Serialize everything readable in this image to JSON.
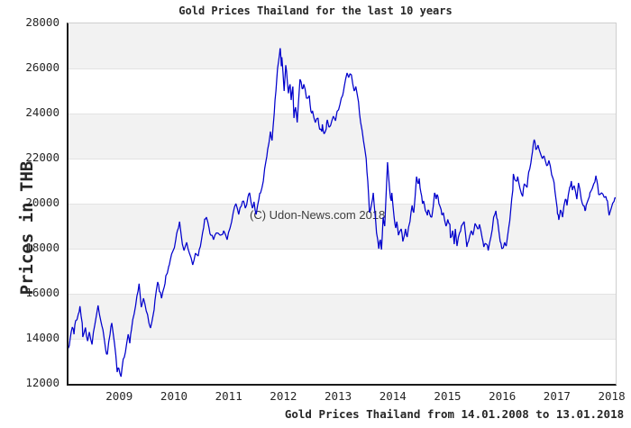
{
  "chart_data": {
    "type": "line",
    "title": "Gold Prices Thailand for the last 10 years",
    "ylabel": "Prices in THB",
    "xlabel": "",
    "caption": "Gold Prices Thailand from 14.01.2008 to 13.01.2018",
    "watermark": "(C) Udon-News.com 2018",
    "date_range": {
      "from": "14.01.2008",
      "to": "13.01.2018"
    },
    "xlim": [
      2008.04,
      2018.04
    ],
    "ylim": [
      12000,
      28000
    ],
    "x_ticks": [
      "2009",
      "2010",
      "2011",
      "2012",
      "2013",
      "2014",
      "2015",
      "2016",
      "2017",
      "2018"
    ],
    "y_ticks": [
      "12000",
      "14000",
      "16000",
      "18000",
      "20000",
      "22000",
      "24000",
      "26000",
      "28000"
    ],
    "grid": "horizontal-bands",
    "legend": "none",
    "band_colors": {
      "shaded": "#f2f2f2",
      "plain": "#ffffff"
    },
    "line_color": "#0000cc",
    "series": [
      {
        "name": "Gold price Thailand (THB)",
        "points": [
          [
            2008.04,
            13600
          ],
          [
            2008.07,
            14000
          ],
          [
            2008.11,
            14520
          ],
          [
            2008.14,
            14200
          ],
          [
            2008.17,
            14800
          ],
          [
            2008.22,
            15100
          ],
          [
            2008.25,
            15450
          ],
          [
            2008.29,
            14700
          ],
          [
            2008.3,
            14080
          ],
          [
            2008.35,
            14500
          ],
          [
            2008.39,
            13900
          ],
          [
            2008.42,
            14300
          ],
          [
            2008.47,
            13750
          ],
          [
            2008.52,
            14600
          ],
          [
            2008.58,
            15480
          ],
          [
            2008.63,
            14800
          ],
          [
            2008.67,
            14400
          ],
          [
            2008.72,
            13500
          ],
          [
            2008.75,
            13320
          ],
          [
            2008.8,
            14200
          ],
          [
            2008.83,
            14700
          ],
          [
            2008.88,
            13800
          ],
          [
            2008.93,
            12520
          ],
          [
            2008.96,
            12700
          ],
          [
            2009.0,
            12320
          ],
          [
            2009.04,
            13100
          ],
          [
            2009.08,
            13400
          ],
          [
            2009.13,
            14200
          ],
          [
            2009.16,
            13800
          ],
          [
            2009.19,
            14400
          ],
          [
            2009.24,
            15100
          ],
          [
            2009.29,
            15900
          ],
          [
            2009.33,
            16450
          ],
          [
            2009.37,
            15400
          ],
          [
            2009.41,
            15800
          ],
          [
            2009.46,
            15240
          ],
          [
            2009.51,
            14700
          ],
          [
            2009.54,
            14480
          ],
          [
            2009.59,
            15100
          ],
          [
            2009.62,
            15700
          ],
          [
            2009.67,
            16520
          ],
          [
            2009.7,
            16100
          ],
          [
            2009.74,
            15800
          ],
          [
            2009.79,
            16300
          ],
          [
            2009.82,
            16800
          ],
          [
            2009.87,
            17200
          ],
          [
            2009.9,
            17500
          ],
          [
            2009.95,
            17900
          ],
          [
            2010.0,
            18400
          ],
          [
            2010.03,
            18800
          ],
          [
            2010.07,
            19200
          ],
          [
            2010.12,
            18200
          ],
          [
            2010.15,
            17920
          ],
          [
            2010.2,
            18280
          ],
          [
            2010.25,
            17800
          ],
          [
            2010.31,
            17280
          ],
          [
            2010.36,
            17800
          ],
          [
            2010.41,
            17680
          ],
          [
            2010.45,
            18100
          ],
          [
            2010.49,
            18700
          ],
          [
            2010.53,
            19320
          ],
          [
            2010.56,
            19400
          ],
          [
            2010.61,
            18900
          ],
          [
            2010.64,
            18600
          ],
          [
            2010.69,
            18400
          ],
          [
            2010.74,
            18700
          ],
          [
            2010.81,
            18600
          ],
          [
            2010.86,
            18650
          ],
          [
            2010.89,
            18730
          ],
          [
            2010.94,
            18400
          ],
          [
            2010.99,
            18900
          ],
          [
            2011.05,
            19600
          ],
          [
            2011.1,
            20000
          ],
          [
            2011.15,
            19520
          ],
          [
            2011.2,
            19900
          ],
          [
            2011.24,
            20120
          ],
          [
            2011.27,
            19800
          ],
          [
            2011.32,
            20300
          ],
          [
            2011.35,
            20480
          ],
          [
            2011.4,
            19800
          ],
          [
            2011.43,
            20080
          ],
          [
            2011.47,
            19520
          ],
          [
            2011.52,
            20200
          ],
          [
            2011.55,
            20480
          ],
          [
            2011.6,
            21000
          ],
          [
            2011.65,
            21900
          ],
          [
            2011.68,
            22400
          ],
          [
            2011.73,
            23200
          ],
          [
            2011.76,
            22800
          ],
          [
            2011.8,
            24000
          ],
          [
            2011.83,
            25000
          ],
          [
            2011.86,
            26000
          ],
          [
            2011.9,
            26700
          ],
          [
            2011.91,
            26900
          ],
          [
            2011.93,
            26100
          ],
          [
            2011.94,
            26500
          ],
          [
            2011.98,
            25000
          ],
          [
            2012.01,
            26150
          ],
          [
            2012.04,
            25400
          ],
          [
            2012.06,
            24900
          ],
          [
            2012.09,
            25300
          ],
          [
            2012.11,
            24600
          ],
          [
            2012.14,
            25200
          ],
          [
            2012.16,
            23800
          ],
          [
            2012.19,
            24280
          ],
          [
            2012.22,
            23600
          ],
          [
            2012.27,
            25520
          ],
          [
            2012.31,
            25100
          ],
          [
            2012.34,
            25300
          ],
          [
            2012.39,
            24680
          ],
          [
            2012.44,
            24800
          ],
          [
            2012.47,
            24100
          ],
          [
            2012.5,
            24120
          ],
          [
            2012.55,
            23600
          ],
          [
            2012.6,
            23800
          ],
          [
            2012.63,
            23300
          ],
          [
            2012.67,
            23200
          ],
          [
            2012.68,
            23520
          ],
          [
            2012.71,
            23100
          ],
          [
            2012.75,
            23320
          ],
          [
            2012.77,
            23720
          ],
          [
            2012.8,
            23400
          ],
          [
            2012.83,
            23480
          ],
          [
            2012.88,
            23880
          ],
          [
            2012.92,
            23680
          ],
          [
            2012.95,
            24100
          ],
          [
            2013.0,
            24400
          ],
          [
            2013.05,
            24800
          ],
          [
            2013.08,
            25200
          ],
          [
            2013.13,
            25800
          ],
          [
            2013.16,
            25600
          ],
          [
            2013.21,
            25720
          ],
          [
            2013.26,
            25000
          ],
          [
            2013.29,
            25200
          ],
          [
            2013.34,
            24520
          ],
          [
            2013.38,
            23600
          ],
          [
            2013.43,
            22800
          ],
          [
            2013.48,
            22000
          ],
          [
            2013.51,
            21000
          ],
          [
            2013.54,
            19600
          ],
          [
            2013.58,
            20000
          ],
          [
            2013.61,
            20480
          ],
          [
            2013.64,
            19600
          ],
          [
            2013.67,
            18700
          ],
          [
            2013.71,
            18000
          ],
          [
            2013.74,
            18400
          ],
          [
            2013.76,
            17960
          ],
          [
            2013.79,
            19400
          ],
          [
            2013.82,
            19000
          ],
          [
            2013.87,
            21840
          ],
          [
            2013.91,
            20600
          ],
          [
            2013.94,
            20120
          ],
          [
            2013.95,
            20480
          ],
          [
            2013.99,
            19400
          ],
          [
            2014.02,
            18920
          ],
          [
            2014.04,
            19200
          ],
          [
            2014.07,
            18600
          ],
          [
            2014.12,
            18880
          ],
          [
            2014.15,
            18320
          ],
          [
            2014.2,
            18880
          ],
          [
            2014.23,
            18520
          ],
          [
            2014.28,
            19200
          ],
          [
            2014.32,
            19920
          ],
          [
            2014.35,
            19600
          ],
          [
            2014.4,
            21200
          ],
          [
            2014.43,
            20880
          ],
          [
            2014.45,
            21120
          ],
          [
            2014.48,
            20500
          ],
          [
            2014.51,
            20000
          ],
          [
            2014.53,
            20120
          ],
          [
            2014.56,
            19700
          ],
          [
            2014.6,
            19480
          ],
          [
            2014.61,
            19720
          ],
          [
            2014.64,
            19550
          ],
          [
            2014.68,
            19400
          ],
          [
            2014.73,
            20480
          ],
          [
            2014.76,
            20200
          ],
          [
            2014.78,
            20400
          ],
          [
            2014.81,
            20000
          ],
          [
            2014.84,
            19800
          ],
          [
            2014.86,
            19520
          ],
          [
            2014.89,
            19600
          ],
          [
            2014.94,
            19000
          ],
          [
            2014.97,
            19300
          ],
          [
            2015.01,
            19080
          ],
          [
            2015.02,
            18480
          ],
          [
            2015.06,
            18800
          ],
          [
            2015.09,
            18200
          ],
          [
            2015.11,
            18880
          ],
          [
            2015.14,
            18120
          ],
          [
            2015.19,
            18720
          ],
          [
            2015.22,
            19000
          ],
          [
            2015.27,
            19200
          ],
          [
            2015.32,
            18080
          ],
          [
            2015.35,
            18320
          ],
          [
            2015.4,
            18800
          ],
          [
            2015.43,
            18600
          ],
          [
            2015.47,
            19120
          ],
          [
            2015.52,
            18880
          ],
          [
            2015.55,
            19080
          ],
          [
            2015.6,
            18480
          ],
          [
            2015.63,
            18080
          ],
          [
            2015.68,
            18200
          ],
          [
            2015.71,
            17920
          ],
          [
            2015.76,
            18520
          ],
          [
            2015.81,
            19400
          ],
          [
            2015.85,
            19680
          ],
          [
            2015.88,
            19280
          ],
          [
            2015.93,
            18320
          ],
          [
            2015.96,
            18000
          ],
          [
            2016.01,
            18280
          ],
          [
            2016.04,
            18120
          ],
          [
            2016.09,
            19000
          ],
          [
            2016.12,
            19680
          ],
          [
            2016.16,
            20600
          ],
          [
            2016.17,
            21320
          ],
          [
            2016.22,
            21000
          ],
          [
            2016.25,
            21200
          ],
          [
            2016.29,
            20680
          ],
          [
            2016.34,
            20320
          ],
          [
            2016.37,
            20880
          ],
          [
            2016.42,
            20720
          ],
          [
            2016.45,
            21400
          ],
          [
            2016.49,
            21800
          ],
          [
            2016.52,
            22300
          ],
          [
            2016.55,
            22840
          ],
          [
            2016.58,
            22400
          ],
          [
            2016.62,
            22600
          ],
          [
            2016.67,
            22200
          ],
          [
            2016.7,
            22000
          ],
          [
            2016.73,
            22120
          ],
          [
            2016.78,
            21680
          ],
          [
            2016.82,
            21920
          ],
          [
            2016.87,
            21280
          ],
          [
            2016.9,
            21080
          ],
          [
            2016.93,
            20560
          ],
          [
            2016.97,
            19800
          ],
          [
            2016.98,
            19520
          ],
          [
            2017.0,
            19280
          ],
          [
            2017.03,
            19720
          ],
          [
            2017.07,
            19400
          ],
          [
            2017.12,
            20200
          ],
          [
            2017.15,
            19920
          ],
          [
            2017.2,
            20720
          ],
          [
            2017.23,
            21000
          ],
          [
            2017.25,
            20600
          ],
          [
            2017.28,
            20800
          ],
          [
            2017.33,
            20200
          ],
          [
            2017.36,
            20920
          ],
          [
            2017.41,
            20200
          ],
          [
            2017.45,
            19900
          ],
          [
            2017.48,
            19680
          ],
          [
            2017.5,
            19920
          ],
          [
            2017.56,
            20320
          ],
          [
            2017.58,
            20520
          ],
          [
            2017.64,
            20880
          ],
          [
            2017.68,
            21240
          ],
          [
            2017.69,
            21100
          ],
          [
            2017.73,
            20400
          ],
          [
            2017.78,
            20480
          ],
          [
            2017.83,
            20280
          ],
          [
            2017.86,
            20320
          ],
          [
            2017.89,
            20120
          ],
          [
            2017.92,
            19480
          ],
          [
            2017.96,
            19800
          ],
          [
            2018.01,
            20100
          ],
          [
            2018.04,
            20250
          ]
        ]
      }
    ]
  }
}
